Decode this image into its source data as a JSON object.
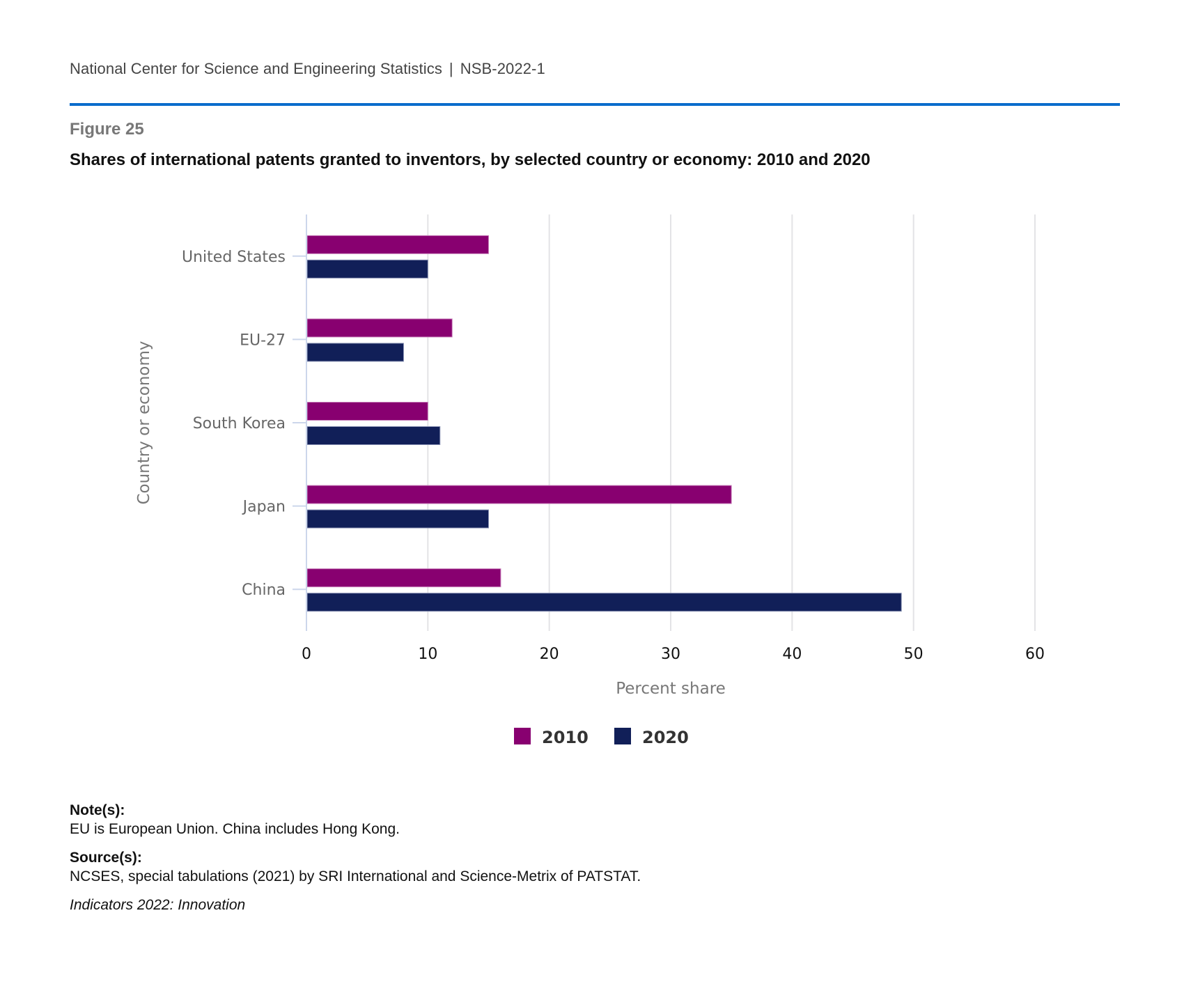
{
  "header": {
    "org": "National Center for Science and Engineering Statistics",
    "separator": "|",
    "report_id": "NSB-2022-1"
  },
  "figure": {
    "number": "Figure 25",
    "title": "Shares of international patents granted to inventors, by selected country or economy: 2010 and 2020"
  },
  "colors": {
    "accent_rule": "#0a6ccc",
    "series_2010": "#880070",
    "series_2020": "#111f58"
  },
  "chart_data": {
    "type": "bar",
    "orientation": "horizontal",
    "title": "Shares of international patents granted to inventors, by selected country or economy: 2010 and 2020",
    "categories": [
      "United States",
      "EU-27",
      "South Korea",
      "Japan",
      "China"
    ],
    "series": [
      {
        "name": "2010",
        "color": "#880070",
        "values": [
          15,
          12,
          10,
          35,
          16
        ]
      },
      {
        "name": "2020",
        "color": "#111f58",
        "values": [
          10,
          8,
          11,
          15,
          49
        ]
      }
    ],
    "xlabel": "Percent share",
    "ylabel": "Country or economy",
    "xlim": [
      0,
      60
    ],
    "xticks": [
      "0",
      "10",
      "20",
      "30",
      "40",
      "50",
      "60"
    ],
    "grid": true,
    "legend": {
      "position": "bottom-center",
      "entries": [
        "2010",
        "2020"
      ]
    }
  },
  "notes": {
    "notes_label": "Note(s):",
    "notes_text": "EU is European Union. China includes Hong Kong.",
    "source_label": "Source(s):",
    "source_text": "NCSES, special tabulations (2021) by SRI International and Science-Metrix of PATSTAT.",
    "publication": "Indicators 2022: Innovation"
  }
}
